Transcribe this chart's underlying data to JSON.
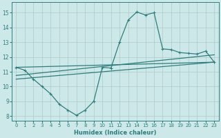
{
  "xlabel": "Humidex (Indice chaleur)",
  "background_color": "#cce8e8",
  "grid_color": "#b0c8c8",
  "line_color": "#2e7d7d",
  "xlim": [
    -0.5,
    23.5
  ],
  "ylim": [
    7.7,
    15.7
  ],
  "yticks": [
    8,
    9,
    10,
    11,
    12,
    13,
    14,
    15
  ],
  "xticks": [
    0,
    1,
    2,
    3,
    4,
    5,
    6,
    7,
    8,
    9,
    10,
    11,
    12,
    13,
    14,
    15,
    16,
    17,
    18,
    19,
    20,
    21,
    22,
    23
  ],
  "curve1_x": [
    0,
    1,
    2,
    3,
    4,
    5,
    6,
    7,
    8,
    9,
    10,
    11,
    12,
    13,
    14,
    15,
    16,
    17,
    18,
    19,
    20,
    21,
    22,
    23
  ],
  "curve1_y": [
    11.3,
    11.1,
    10.5,
    10.0,
    9.5,
    8.8,
    8.4,
    8.05,
    8.4,
    9.0,
    11.3,
    11.25,
    13.0,
    14.5,
    15.05,
    14.85,
    15.0,
    12.55,
    12.5,
    12.3,
    12.25,
    12.2,
    12.4,
    11.65
  ],
  "curve2_x": [
    0,
    23
  ],
  "curve2_y": [
    11.3,
    11.65
  ],
  "curve3_x": [
    0,
    23
  ],
  "curve3_y": [
    10.75,
    12.15
  ],
  "curve4_x": [
    0,
    23
  ],
  "curve4_y": [
    10.5,
    11.65
  ]
}
